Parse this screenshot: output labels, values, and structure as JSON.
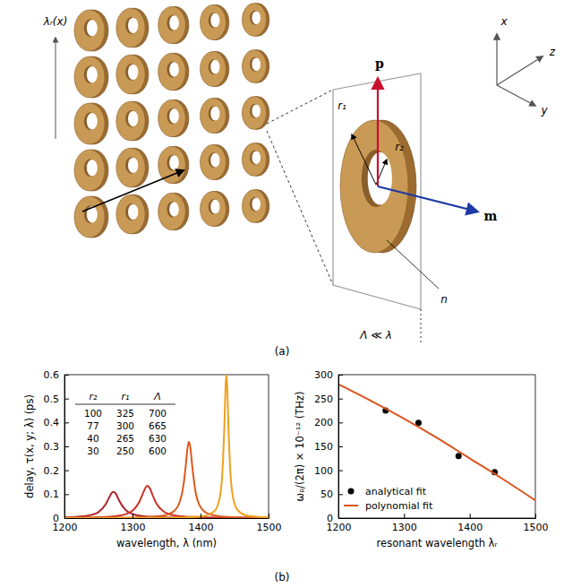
{
  "diagram": {
    "gradient_label": "λᵣ(x)",
    "dipole_p": "p",
    "dipole_m": "m",
    "axis_x": "x",
    "axis_y": "y",
    "axis_z": "z",
    "outer_radius": "r₁",
    "inner_radius": "r₂",
    "index": "n",
    "period": "Λ ≪ λ"
  },
  "panel_labels": [
    "(a)",
    "(b)"
  ],
  "chart_data": [
    {
      "type": "line",
      "x_label": "wavelength, λ (nm)",
      "y_label": "delay, τ(x, y; λ) (ps)",
      "xlim": [
        1200,
        1500
      ],
      "ylim": [
        0,
        0.6
      ],
      "xticks": [
        1200,
        1300,
        1400,
        1500
      ],
      "yticks": [
        0,
        0.1,
        0.2,
        0.3,
        0.4,
        0.5,
        0.6
      ],
      "grid": false,
      "table": {
        "columns": [
          "r₂",
          "r₁",
          "Λ"
        ],
        "rows": [
          [
            100,
            325,
            700
          ],
          [
            77,
            300,
            665
          ],
          [
            40,
            265,
            630
          ],
          [
            30,
            250,
            600
          ]
        ]
      },
      "series": [
        {
          "color": "#b0232c",
          "x": [
            1200,
            1220,
            1240,
            1250,
            1260,
            1265,
            1270,
            1272,
            1275,
            1280,
            1285,
            1290,
            1300,
            1320,
            1340,
            1400,
            1500
          ],
          "values": [
            0.003,
            0.0056,
            0.0136,
            0.025,
            0.055,
            0.082,
            0.107,
            0.11,
            0.104,
            0.076,
            0.051,
            0.034,
            0.017,
            0.0065,
            0.0033,
            0.001,
            0.0003
          ]
        },
        {
          "color": "#cc3328",
          "x": [
            1200,
            1250,
            1270,
            1290,
            1300,
            1310,
            1315,
            1320,
            1322,
            1325,
            1330,
            1335,
            1345,
            1360,
            1380,
            1420,
            1500
          ],
          "values": [
            0.0013,
            0.0037,
            0.0068,
            0.0166,
            0.031,
            0.0675,
            0.101,
            0.131,
            0.135,
            0.127,
            0.093,
            0.062,
            0.029,
            0.012,
            0.0055,
            0.002,
            0.0006
          ]
        },
        {
          "color": "#dc5a1e",
          "x": [
            1200,
            1300,
            1340,
            1360,
            1370,
            1375,
            1378,
            1381,
            1383,
            1385,
            1388,
            1392,
            1398,
            1410,
            1430,
            1460,
            1500
          ],
          "values": [
            0.0005,
            0.0023,
            0.0083,
            0.027,
            0.072,
            0.139,
            0.212,
            0.296,
            0.32,
            0.296,
            0.212,
            0.121,
            0.057,
            0.02,
            0.007,
            0.0026,
            0.0011
          ]
        },
        {
          "color": "#f0a01e",
          "x": [
            1200,
            1350,
            1400,
            1420,
            1428,
            1432,
            1435,
            1437,
            1438,
            1439,
            1441,
            1444,
            1448,
            1455,
            1470,
            1500
          ],
          "values": [
            0.0002,
            0.0012,
            0.0066,
            0.028,
            0.083,
            0.185,
            0.384,
            0.565,
            0.6,
            0.565,
            0.384,
            0.185,
            0.083,
            0.032,
            0.0092,
            0.0025
          ]
        }
      ]
    },
    {
      "type": "scatter",
      "x_label": "resonant wavelength λᵣ",
      "y_label": "ωₚ/(2π) × 10⁻¹² (THz)",
      "xlim": [
        1200,
        1500
      ],
      "ylim": [
        0,
        300
      ],
      "xticks": [
        1200,
        1300,
        1400,
        1500
      ],
      "yticks": [
        0,
        50,
        100,
        150,
        200,
        250,
        300
      ],
      "grid": false,
      "legend": "lower left",
      "series": [
        {
          "name": "analytical fit",
          "type": "scatter",
          "marker": "circle",
          "color": "#000000",
          "x": [
            1272,
            1322,
            1383,
            1438
          ],
          "values": [
            225,
            199,
            130,
            96
          ]
        },
        {
          "name": "polynomial fit",
          "type": "line",
          "color": "#d9541e",
          "x": [
            1200,
            1250,
            1300,
            1350,
            1400,
            1450,
            1500
          ],
          "values": [
            280,
            245,
            208,
            168,
            125,
            82,
            37
          ]
        }
      ]
    }
  ]
}
